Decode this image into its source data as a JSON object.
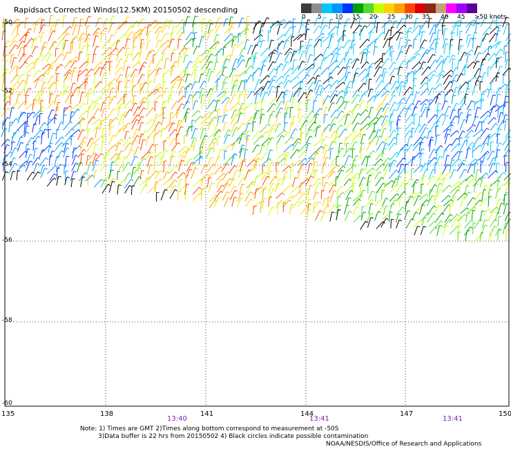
{
  "title": "Rapidsact Corrected Winds(12.5KM) 20150502 descending",
  "colorbar": {
    "colors": [
      "#3c3c3c",
      "#8c8c8c",
      "#00c8ff",
      "#0096ff",
      "#0032ff",
      "#00a000",
      "#50dc28",
      "#c8ff00",
      "#ffd200",
      "#ffa000",
      "#ff4600",
      "#dc0000",
      "#8c2814",
      "#c8a078",
      "#ff00ff",
      "#a000ff",
      "#5a0096"
    ],
    "ticks": [
      "0",
      "5",
      "10",
      "15",
      "20",
      "25",
      "30",
      "35",
      "40",
      "45",
      ">50 knots"
    ]
  },
  "lat_labels": [
    "-50",
    "-52",
    "-54",
    "-56",
    "-58",
    "-60"
  ],
  "lon_labels": [
    "135",
    "138",
    "141",
    "144",
    "147",
    "150"
  ],
  "time_labels": [
    "13:40",
    "13:41",
    "13:41"
  ],
  "notes": [
    "Note: 1) Times are GMT 2)Times along bottom correspond to measurement at -50S",
    "3)Data buffer is 22 hrs from 20150502 4) Black circles indicate possible contamination",
    "NOAA/NESDIS/Office of Research and Applications"
  ]
}
